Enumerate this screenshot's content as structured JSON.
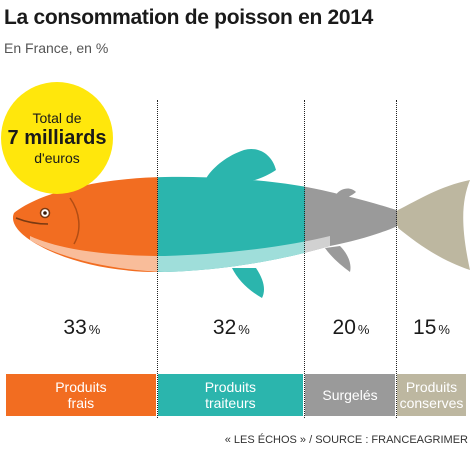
{
  "header": {
    "title": "La consommation de poisson en 2014",
    "subtitle": "En France, en %"
  },
  "total": {
    "line1": "Total de",
    "line2": "7 milliards",
    "line3": "d'euros"
  },
  "source": "« LES ÉCHOS » / SOURCE : FRANCEAGRIMER",
  "chart_data": {
    "type": "bar",
    "stacked": true,
    "orientation": "horizontal",
    "title": "La consommation de poisson en 2014",
    "subtitle": "En France, en %",
    "unit": "%",
    "categories": [
      "Produits frais",
      "Produits traiteurs",
      "Surgelés",
      "Produits conserves"
    ],
    "category_lines": [
      [
        "Produits",
        "frais"
      ],
      [
        "Produits",
        "traiteurs"
      ],
      [
        "Surgelés"
      ],
      [
        "Produits",
        "conserves"
      ]
    ],
    "values": [
      33,
      32,
      20,
      15
    ],
    "colors": [
      "#f26d21",
      "#2bb5ad",
      "#9a9a9a",
      "#bdb7a0"
    ]
  }
}
